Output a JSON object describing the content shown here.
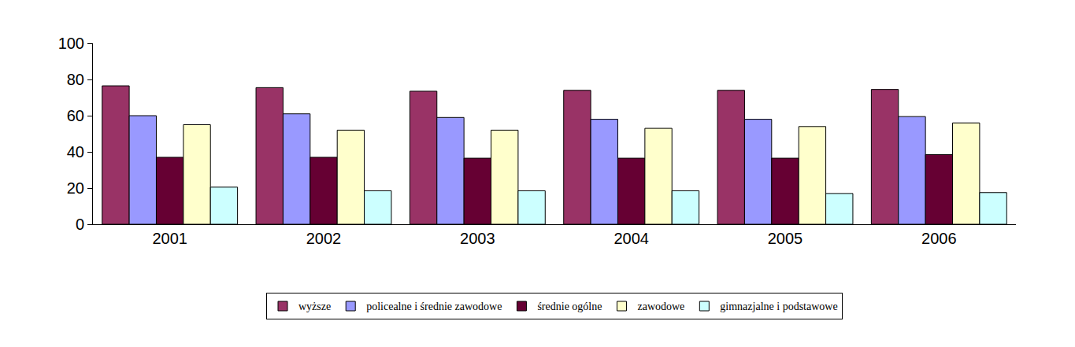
{
  "chart_data": {
    "type": "bar",
    "categories": [
      "2001",
      "2002",
      "2003",
      "2004",
      "2005",
      "2006"
    ],
    "series": [
      {
        "name": "wyższe",
        "color": "#993366",
        "values": [
          76.5,
          75.5,
          73.5,
          74,
          74,
          74.5
        ]
      },
      {
        "name": "policealne i średnie zawodowe",
        "color": "#9999ff",
        "values": [
          60,
          61,
          59,
          58,
          58,
          59.5
        ]
      },
      {
        "name": "średnie ogólne",
        "color": "#660033",
        "values": [
          37,
          37,
          36.5,
          36.5,
          36.5,
          38.5
        ]
      },
      {
        "name": "zawodowe",
        "color": "#ffffcc",
        "values": [
          55,
          52,
          52,
          53,
          54,
          56
        ]
      },
      {
        "name": "gimnazjalne i podstawowe",
        "color": "#ccffff",
        "values": [
          20.5,
          18.5,
          18.5,
          18.5,
          17,
          17.5
        ]
      }
    ],
    "ylim": [
      0,
      100
    ],
    "yticks": [
      0,
      20,
      40,
      60,
      80,
      100
    ],
    "grid": false,
    "legend": "bottom"
  }
}
